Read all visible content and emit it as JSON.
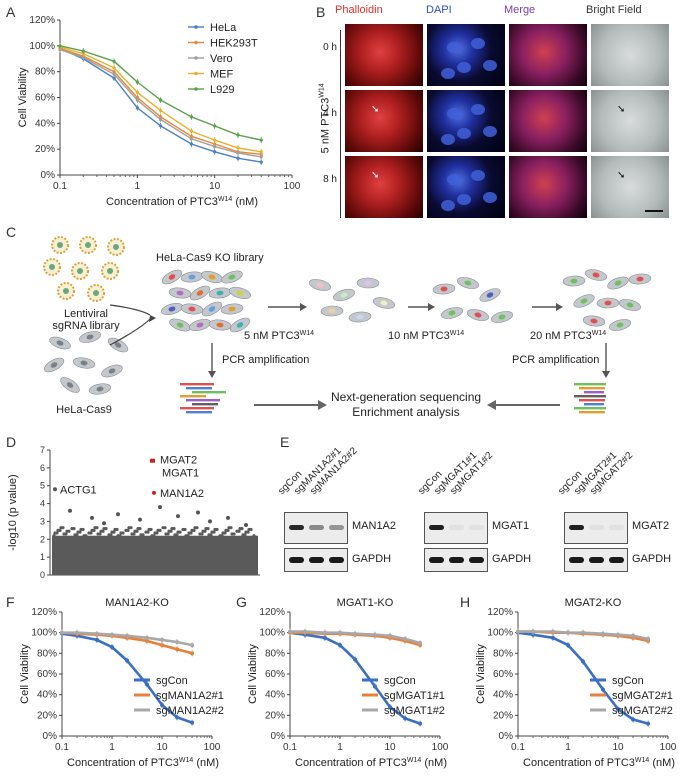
{
  "panels": {
    "A": "A",
    "B": "B",
    "C": "C",
    "D": "D",
    "E": "E",
    "F": "F",
    "G": "G",
    "H": "H"
  },
  "panelA": {
    "ylabel": "Cell Viability",
    "xlabel": "Concentration of PTC3W14 (nM)",
    "xlabel_main": "Concentration of PTC3",
    "xlabel_sup": "W14",
    "xlabel_unit": "(nM)",
    "yticks": [
      "0%",
      "20%",
      "40%",
      "60%",
      "80%",
      "100%",
      "120%"
    ],
    "xticks": [
      "0.1",
      "1",
      "10",
      "100"
    ],
    "legend": [
      "HeLa",
      "HEK293T",
      "Vero",
      "MEF",
      "L929"
    ],
    "colors": [
      "#4a7fc1",
      "#e6893a",
      "#a0a0a0",
      "#e8b030",
      "#5aa04a"
    ]
  },
  "panelB": {
    "columns": [
      "Phalloidin",
      "DAPI",
      "Merge",
      "Bright Field"
    ],
    "column_colors": [
      "#e03030",
      "#3050c0",
      "#8040a0",
      "#333333"
    ],
    "rows": [
      "0 h",
      "4 h",
      "8 h"
    ],
    "side_label_main": "5 nM PTC3",
    "side_label_sup": "W14"
  },
  "panelC": {
    "lentiviral": "Lentiviral",
    "sgrna": "sgRNA library",
    "library": "HeLa-Cas9 KO library",
    "hela": "HeLa-Cas9",
    "step1_main": "5 nM PTC3",
    "step1_sup": "W14",
    "step2_main": "10 nM PTC3",
    "step2_sup": "W14",
    "step3_main": "20 nM PTC3",
    "step3_sup": "W14",
    "pcr_left": "PCR amplification",
    "pcr_right": "PCR amplification",
    "ngs1": "Next-generation sequencing",
    "ngs2": "Enrichment analysis"
  },
  "panelD": {
    "ylabel": "-log10 (p value)",
    "yticks": [
      "0",
      "1",
      "2",
      "3",
      "4",
      "5",
      "6",
      "7"
    ],
    "labels": [
      "MGAT2",
      "MGAT1",
      "MAN1A2",
      "ACTG1"
    ]
  },
  "panelE": {
    "blots": [
      {
        "lanes": [
          "sgCon",
          "sgMAN1A2#1",
          "sgMAN1A2#2"
        ],
        "target": "MAN1A2",
        "control": "GAPDH"
      },
      {
        "lanes": [
          "sgCon",
          "sgMGAT1#1",
          "sgMGAT1#2"
        ],
        "target": "MGAT1",
        "control": "GAPDH"
      },
      {
        "lanes": [
          "sgCon",
          "sgMGAT2#1",
          "sgMGAT2#2"
        ],
        "target": "MGAT2",
        "control": "GAPDH"
      }
    ]
  },
  "panelFGH": {
    "ylabel": "Cell Viability",
    "xlabel_main": "Concentration of PTC3",
    "xlabel_sup": "W14",
    "xlabel_unit": "(nM)",
    "yticks": [
      "0%",
      "20%",
      "40%",
      "60%",
      "80%",
      "100%",
      "120%"
    ],
    "xticks": [
      "0.1",
      "1",
      "10",
      "100"
    ],
    "titles": [
      "MAN1A2-KO",
      "MGAT1-KO",
      "MGAT2-KO"
    ],
    "legends": [
      [
        "sgCon",
        "sgMAN1A2#1",
        "sgMAN1A2#2"
      ],
      [
        "sgCon",
        "sgMGAT1#1",
        "sgMGAT1#2"
      ],
      [
        "sgCon",
        "sgMGAT2#1",
        "sgMGAT2#2"
      ]
    ],
    "colors": [
      "#3a6fc4",
      "#e8803a",
      "#a8a8a8"
    ]
  },
  "chart_data": [
    {
      "type": "line",
      "panel": "A",
      "xscale": "log",
      "x": [
        0.1,
        0.2,
        0.5,
        1,
        2,
        5,
        10,
        20,
        40
      ],
      "ylim": [
        0,
        120
      ],
      "xlim": [
        0.1,
        100
      ],
      "series": [
        {
          "name": "HeLa",
          "values": [
            98,
            90,
            75,
            52,
            38,
            24,
            18,
            13,
            10
          ]
        },
        {
          "name": "HEK293T",
          "values": [
            98,
            92,
            80,
            60,
            45,
            30,
            24,
            18,
            16
          ]
        },
        {
          "name": "Vero",
          "values": [
            97,
            91,
            78,
            58,
            43,
            28,
            22,
            17,
            14
          ]
        },
        {
          "name": "MEF",
          "values": [
            99,
            94,
            83,
            64,
            50,
            34,
            27,
            21,
            18
          ]
        },
        {
          "name": "L929",
          "values": [
            100,
            96,
            88,
            72,
            58,
            45,
            38,
            31,
            27
          ]
        }
      ]
    },
    {
      "type": "scatter",
      "panel": "D",
      "ylim": [
        0,
        7
      ],
      "highlighted": [
        {
          "label": "MGAT2",
          "y": 6.4
        },
        {
          "label": "MGAT1",
          "y": 6.4
        },
        {
          "label": "MAN1A2",
          "y": 4.6
        },
        {
          "label": "ACTG1",
          "y": 4.8
        }
      ]
    },
    {
      "type": "line",
      "panel": "F",
      "title": "MAN1A2-KO",
      "xscale": "log",
      "x": [
        0.1,
        0.2,
        0.5,
        1,
        2,
        5,
        10,
        20,
        40
      ],
      "ylim": [
        0,
        120
      ],
      "series": [
        {
          "name": "sgCon",
          "values": [
            99,
            97,
            93,
            86,
            73,
            50,
            30,
            18,
            13
          ]
        },
        {
          "name": "sgMAN1A2#1",
          "values": [
            100,
            99,
            98,
            97,
            95,
            92,
            88,
            84,
            80
          ]
        },
        {
          "name": "sgMAN1A2#2",
          "values": [
            100,
            100,
            99,
            98,
            97,
            95,
            93,
            91,
            88
          ]
        }
      ]
    },
    {
      "type": "line",
      "panel": "G",
      "title": "MGAT1-KO",
      "xscale": "log",
      "x": [
        0.1,
        0.2,
        0.5,
        1,
        2,
        5,
        10,
        20,
        40
      ],
      "ylim": [
        0,
        120
      ],
      "series": [
        {
          "name": "sgCon",
          "values": [
            100,
            98,
            95,
            88,
            74,
            48,
            28,
            17,
            12
          ]
        },
        {
          "name": "sgMGAT1#1",
          "values": [
            100,
            100,
            99,
            99,
            98,
            97,
            95,
            92,
            88
          ]
        },
        {
          "name": "sgMGAT1#2",
          "values": [
            101,
            101,
            100,
            100,
            99,
            98,
            97,
            94,
            90
          ]
        }
      ]
    },
    {
      "type": "line",
      "panel": "H",
      "title": "MGAT2-KO",
      "xscale": "log",
      "x": [
        0.1,
        0.2,
        0.5,
        1,
        2,
        5,
        10,
        20,
        40
      ],
      "ylim": [
        0,
        120
      ],
      "series": [
        {
          "name": "sgCon",
          "values": [
            100,
            98,
            95,
            88,
            72,
            45,
            26,
            16,
            12
          ]
        },
        {
          "name": "sgMGAT2#1",
          "values": [
            101,
            101,
            100,
            100,
            99,
            98,
            97,
            95,
            92
          ]
        },
        {
          "name": "sgMGAT2#2",
          "values": [
            101,
            101,
            101,
            100,
            100,
            99,
            98,
            97,
            94
          ]
        }
      ]
    }
  ]
}
